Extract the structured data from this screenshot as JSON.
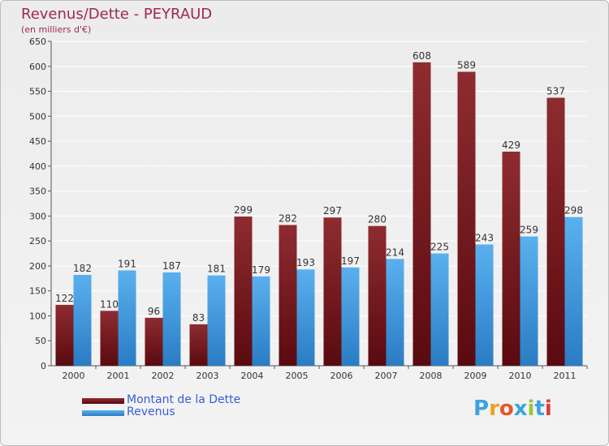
{
  "title": "Revenus/Dette - PEYRAUD",
  "subtitle": "(en milliers d'€)",
  "legend": {
    "debt_label": "Montant de la Dette",
    "revenue_label": "Revenus"
  },
  "logo": {
    "text": "Proxiti",
    "letters": [
      "P",
      "r",
      "o",
      "x",
      "i",
      "t",
      "i"
    ],
    "colors": [
      "#3aa3e0",
      "#f0a020",
      "#e05a2a",
      "#3aa3e0",
      "#9ac43a",
      "#3aa3e0",
      "#e03a3a"
    ]
  },
  "colors": {
    "debt": "#7a1a22",
    "revenue": "#3a8fd6",
    "title": "#a0294a"
  },
  "chart_data": {
    "type": "bar",
    "categories": [
      "2000",
      "2001",
      "2002",
      "2003",
      "2004",
      "2005",
      "2006",
      "2007",
      "2008",
      "2009",
      "2010",
      "2011"
    ],
    "series": [
      {
        "name": "Montant de la Dette",
        "values": [
          122,
          110,
          96,
          83,
          299,
          282,
          297,
          280,
          608,
          589,
          429,
          537
        ]
      },
      {
        "name": "Revenus",
        "values": [
          182,
          191,
          187,
          181,
          179,
          193,
          197,
          214,
          225,
          243,
          259,
          298
        ]
      }
    ],
    "title": "Revenus/Dette - PEYRAUD",
    "ylabel": "(en milliers d'€)",
    "ylim": [
      0,
      650
    ],
    "yticks": [
      0,
      50,
      100,
      150,
      200,
      250,
      300,
      350,
      400,
      450,
      500,
      550,
      600,
      650
    ],
    "grid": true,
    "legend_position": "bottom-left"
  }
}
